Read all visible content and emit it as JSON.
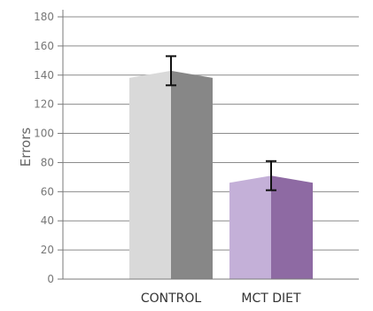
{
  "chart_data": {
    "type": "bar",
    "title": "",
    "xlabel": "",
    "ylabel": "Errors",
    "ylim": [
      0,
      180
    ],
    "yticks": [
      0,
      20,
      40,
      60,
      80,
      100,
      120,
      140,
      160,
      180
    ],
    "grid": true,
    "categories": [
      "CONTROL",
      "MCT DIET"
    ],
    "series": [
      {
        "values": [
          143,
          71
        ],
        "error": [
          10,
          10
        ],
        "colors": [
          {
            "light": "#d9d9d9",
            "dark": "#878787"
          },
          {
            "light": "#c4b0d8",
            "dark": "#8e6aa3"
          }
        ]
      }
    ]
  }
}
